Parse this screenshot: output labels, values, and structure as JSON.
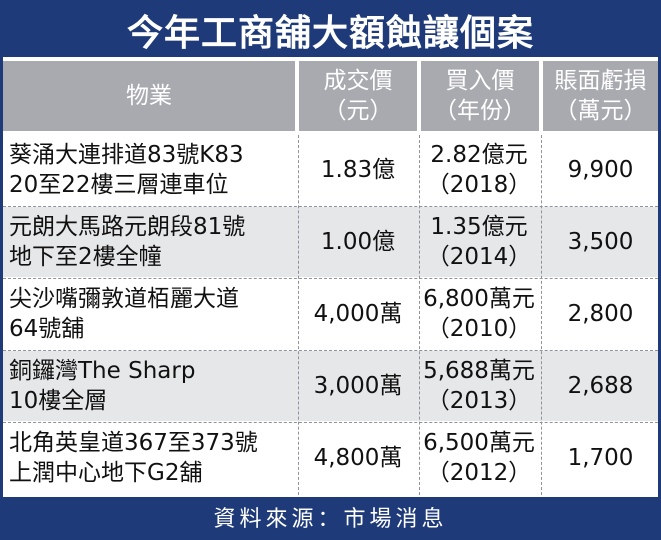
{
  "title": "今年工商舖大額蝕讓個案",
  "headers": {
    "property": "物業",
    "sale_price": [
      "成交價",
      "（元）"
    ],
    "buy_price": [
      "買入價",
      "（年份）"
    ],
    "book_loss": [
      "賬面虧損",
      "（萬元）"
    ]
  },
  "rows": [
    {
      "property": [
        "葵涌大連排道83號K83",
        "20至22樓三層連車位"
      ],
      "sale_price": "1.83億",
      "buy_price": [
        "2.82億元",
        "（2018）"
      ],
      "book_loss": "9,900"
    },
    {
      "property": [
        "元朗大馬路元朗段81號",
        "地下至2樓全幢"
      ],
      "sale_price": "1.00億",
      "buy_price": [
        "1.35億元",
        "（2014）"
      ],
      "book_loss": "3,500"
    },
    {
      "property": [
        "尖沙嘴彌敦道栢麗大道",
        "64號舖"
      ],
      "sale_price": "4,000萬",
      "buy_price": [
        "6,800萬元",
        "（2010）"
      ],
      "book_loss": "2,800"
    },
    {
      "property": [
        "銅鑼灣The Sharp",
        "10樓全層"
      ],
      "sale_price": "3,000萬",
      "buy_price": [
        "5,688萬元",
        "（2013）"
      ],
      "book_loss": "2,688"
    },
    {
      "property": [
        "北角英皇道367至373號",
        "上潤中心地下G2舖"
      ],
      "sale_price": "4,800萬",
      "buy_price": [
        "6,500萬元",
        "（2012）"
      ],
      "book_loss": "1,700"
    }
  ],
  "source": "資料來源：市場消息",
  "colors": {
    "title_bg": "#1e3a78",
    "header_bg": "#a8aab0",
    "row_shade": "#e6e7e9"
  }
}
